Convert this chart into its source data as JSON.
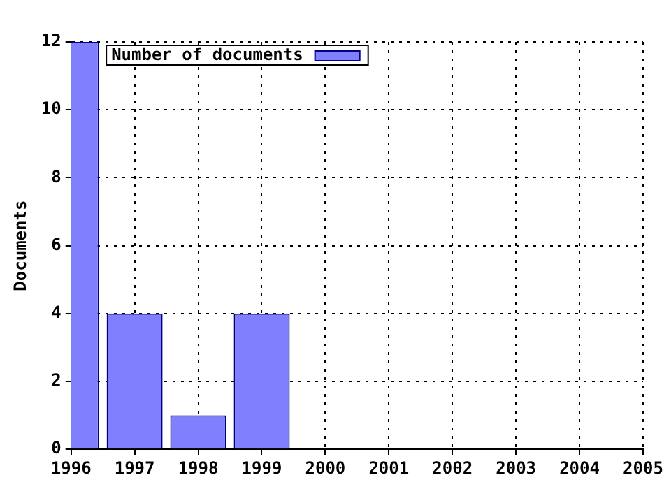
{
  "chart_data": {
    "type": "bar",
    "ylabel": "Documents",
    "x": [
      1996,
      1997,
      1998,
      1999
    ],
    "series": [
      {
        "name": "Number of documents",
        "color": "#8080ff",
        "values": [
          12,
          4,
          1,
          4
        ]
      }
    ],
    "xlim": [
      1996,
      2005
    ],
    "xticks": [
      1996,
      1997,
      1998,
      1999,
      2000,
      2001,
      2002,
      2003,
      2004,
      2005
    ],
    "ylim": [
      0,
      12
    ],
    "yticks": [
      0,
      2,
      4,
      6,
      8,
      10,
      12
    ],
    "grid": true,
    "legend": "top left"
  }
}
